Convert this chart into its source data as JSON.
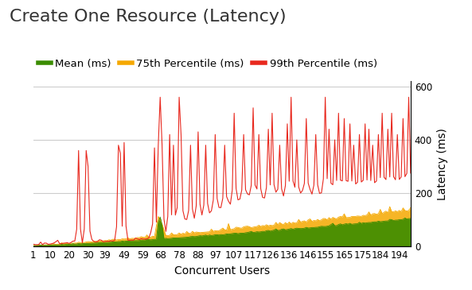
{
  "title": "Create One Resource (Latency)",
  "xlabel": "Concurrent Users",
  "ylabel": "Latency (ms)",
  "x_ticks": [
    1,
    10,
    20,
    30,
    39,
    49,
    59,
    68,
    78,
    88,
    97,
    107,
    117,
    126,
    136,
    146,
    155,
    165,
    175,
    184,
    194
  ],
  "ylim": [
    0,
    620
  ],
  "y_ticks": [
    0,
    200,
    400,
    600
  ],
  "legend": [
    "Mean (ms)",
    "75th Percentile (ms)",
    "99th Percentile (ms)"
  ],
  "mean_color": "#3a8c00",
  "p75_color": "#f5a800",
  "p99_color": "#e8281e",
  "title_fontsize": 16,
  "label_fontsize": 10,
  "tick_fontsize": 8.5,
  "legend_fontsize": 9.5,
  "background_color": "#ffffff",
  "grid_color": "#cccccc"
}
